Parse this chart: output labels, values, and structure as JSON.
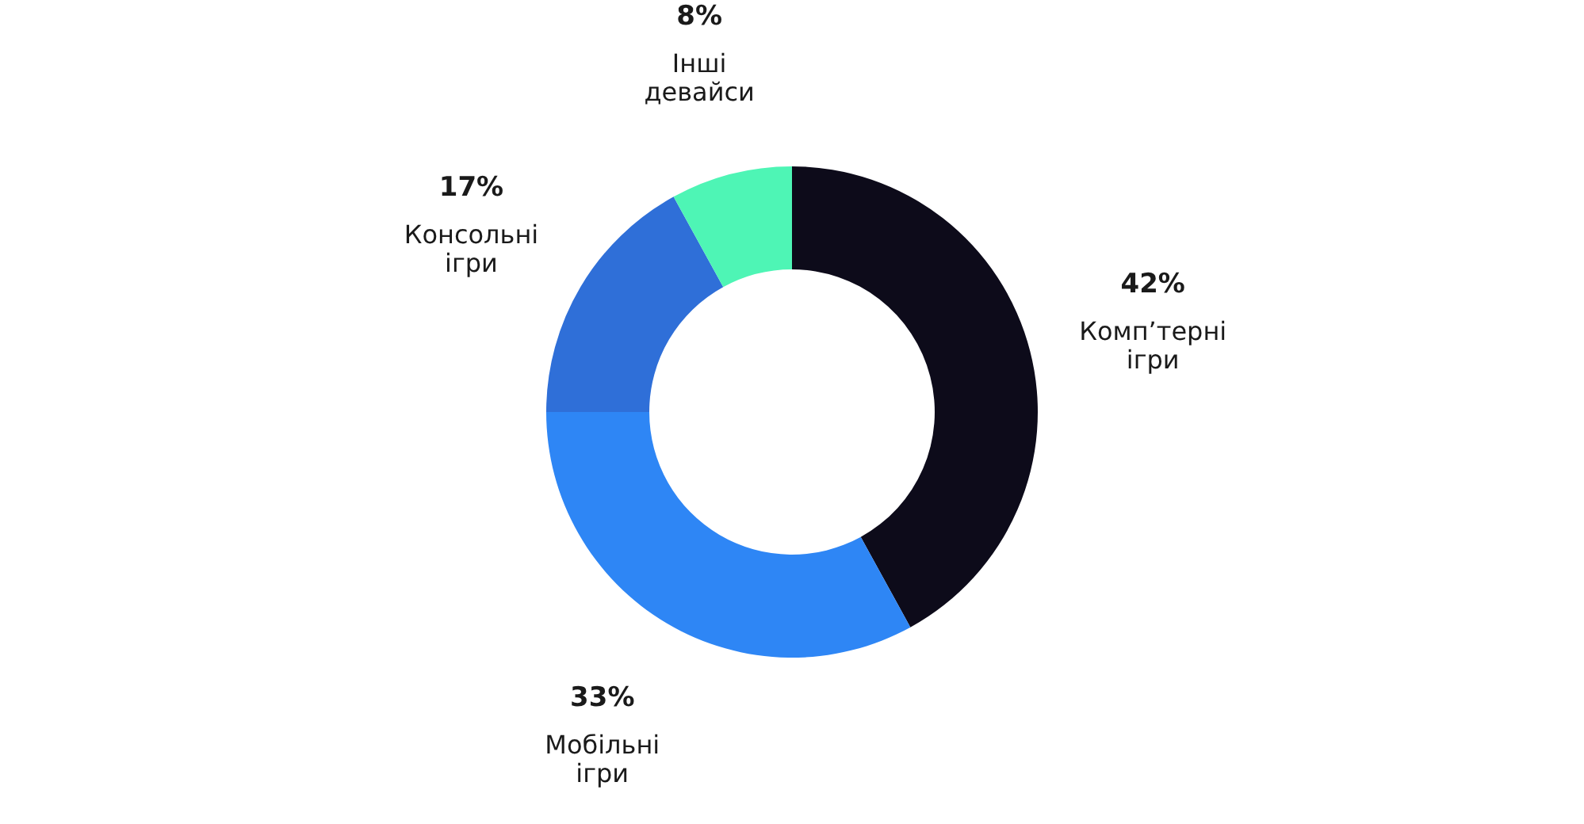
{
  "chart_data": {
    "type": "donut",
    "categories": [
      "Комп’терні ігри",
      "Мобільні ігри",
      "Консольні ігри",
      "Інші девайси"
    ],
    "values": [
      42,
      33,
      17,
      8
    ],
    "colors": [
      "#0d0b1a",
      "#2e86f5",
      "#2f6fd8",
      "#4ef5b5"
    ],
    "value_labels": [
      "42%",
      "33%",
      "17%",
      "8%"
    ]
  }
}
